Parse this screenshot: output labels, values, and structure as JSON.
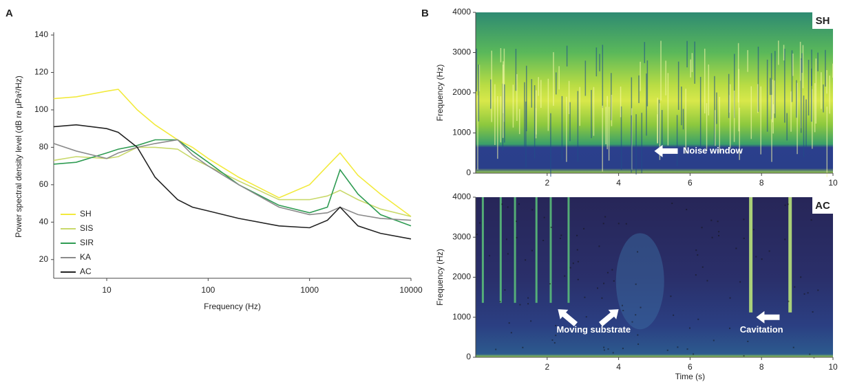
{
  "chart_data": [
    {
      "type": "line",
      "panel": "A",
      "x_label": "Frequency (Hz)",
      "y_label": "Power spectral density level (dB re µPa²/Hz)",
      "log_x": true,
      "xlim": [
        3,
        10000
      ],
      "xticks": [
        10,
        100,
        1000,
        10000
      ],
      "ylim": [
        10,
        140
      ],
      "yticks": [
        20,
        40,
        60,
        80,
        100,
        120,
        140
      ],
      "legend": "lower left",
      "x": [
        3,
        5,
        10,
        13,
        20,
        30,
        50,
        70,
        100,
        200,
        500,
        1000,
        1500,
        2000,
        3000,
        5000,
        10000
      ],
      "series": [
        {
          "name": "SH",
          "color": "#f2ea3c",
          "values": [
            106,
            107,
            110,
            111,
            100,
            92,
            84,
            80,
            74,
            64,
            53,
            60,
            70,
            77,
            65,
            55,
            43
          ]
        },
        {
          "name": "SIS",
          "color": "#c9d96a",
          "values": [
            73,
            75,
            74,
            75,
            80,
            80,
            79,
            74,
            70,
            62,
            52,
            52,
            54,
            57,
            52,
            47,
            43
          ]
        },
        {
          "name": "SIR",
          "color": "#2e9b52",
          "values": [
            71,
            72,
            77,
            79,
            81,
            84,
            84,
            78,
            72,
            60,
            49,
            45,
            48,
            68,
            55,
            44,
            38
          ]
        },
        {
          "name": "KA",
          "color": "#8a8a8a",
          "values": [
            82,
            78,
            74,
            77,
            80,
            82,
            84,
            76,
            70,
            60,
            48,
            44,
            45,
            48,
            44,
            42,
            41
          ]
        },
        {
          "name": "AC",
          "color": "#222222",
          "values": [
            91,
            92,
            90,
            88,
            80,
            64,
            52,
            48,
            46,
            42,
            38,
            37,
            41,
            48,
            38,
            34,
            31
          ]
        }
      ]
    },
    {
      "type": "spectrogram",
      "panel": "B",
      "tag": "SH",
      "y_label": "Frequency (Hz)",
      "xlim": [
        0,
        10
      ],
      "xticks": [
        2,
        4,
        6,
        8,
        10
      ],
      "ylim": [
        0,
        4000
      ],
      "yticks": [
        0,
        1000,
        2000,
        3000,
        4000
      ],
      "annotations": [
        "Noise window"
      ]
    },
    {
      "type": "spectrogram",
      "tag": "AC",
      "y_label": "Frequency (Hz)",
      "x_label": "Time (s)",
      "xlim": [
        0,
        10
      ],
      "xticks": [
        2,
        4,
        6,
        8,
        10
      ],
      "ylim": [
        0,
        4000
      ],
      "yticks": [
        0,
        1000,
        2000,
        3000,
        4000
      ],
      "annotations": [
        "Moving substrate",
        "Cavitation"
      ]
    }
  ]
}
